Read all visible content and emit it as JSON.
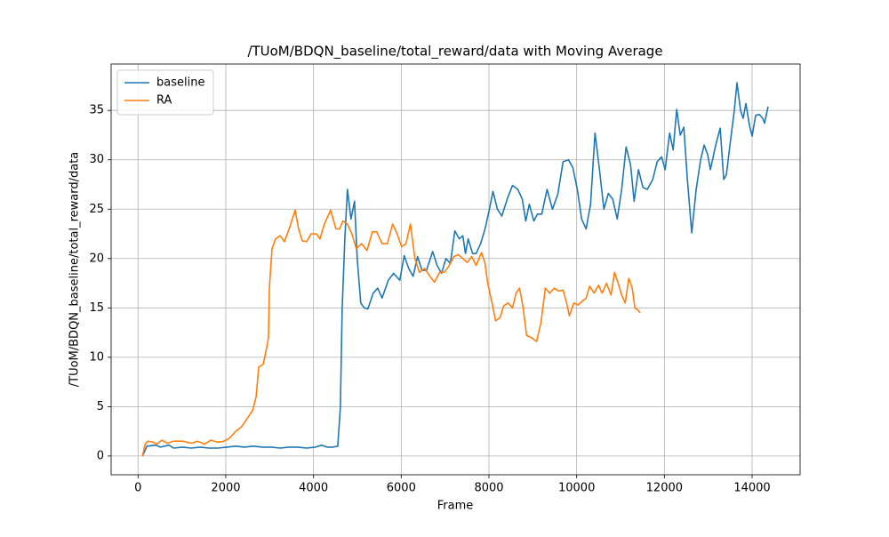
{
  "chart_data": {
    "type": "line",
    "title": "/TUoM/BDQN_baseline/total_reward/data with Moving Average",
    "xlabel": "Frame",
    "ylabel": "/TUoM/BDQN_baseline/total_reward/data",
    "xlim": [
      -614,
      15094
    ],
    "ylim": [
      -1.9,
      39.7
    ],
    "xticks": [
      0,
      2000,
      4000,
      6000,
      8000,
      10000,
      12000,
      14000
    ],
    "yticks": [
      0,
      5,
      10,
      15,
      20,
      25,
      30,
      35
    ],
    "grid": true,
    "legend": "upper-left",
    "series": [
      {
        "name": "baseline",
        "color": "#1f77b4",
        "x": [
          101,
          202,
          405,
          506,
          708,
          809,
          1012,
          1214,
          1416,
          1618,
          1821,
          2023,
          2225,
          2428,
          2630,
          2832,
          3035,
          3237,
          3439,
          3641,
          3844,
          4046,
          4188,
          4309,
          4451,
          4552,
          4613,
          4653,
          4714,
          4774,
          4855,
          4936,
          4997,
          5078,
          5159,
          5240,
          5361,
          5462,
          5563,
          5705,
          5826,
          5968,
          6069,
          6170,
          6271,
          6372,
          6474,
          6575,
          6717,
          6818,
          6919,
          7020,
          7121,
          7222,
          7323,
          7404,
          7465,
          7526,
          7627,
          7708,
          7809,
          7910,
          8011,
          8092,
          8193,
          8294,
          8416,
          8537,
          8659,
          8760,
          8840,
          8921,
          9023,
          9104,
          9205,
          9326,
          9448,
          9569,
          9690,
          9812,
          9913,
          10014,
          10115,
          10216,
          10317,
          10419,
          10520,
          10621,
          10722,
          10823,
          10924,
          11026,
          11127,
          11228,
          11309,
          11410,
          11511,
          11612,
          11733,
          11834,
          11936,
          12017,
          12118,
          12199,
          12280,
          12361,
          12442,
          12523,
          12624,
          12725,
          12826,
          12907,
          12988,
          13049,
          13170,
          13271,
          13352,
          13413,
          13494,
          13595,
          13655,
          13736,
          13797,
          13858,
          13939,
          13999,
          14080,
          14161,
          14242,
          14283,
          14364
        ],
        "values": [
          0,
          1.0,
          1.1,
          0.9,
          1.1,
          0.8,
          0.9,
          0.8,
          0.9,
          0.8,
          0.8,
          0.9,
          1.0,
          0.9,
          1.0,
          0.9,
          0.9,
          0.8,
          0.9,
          0.9,
          0.8,
          0.9,
          1.1,
          0.9,
          0.9,
          1.0,
          5,
          15,
          22,
          27,
          24,
          25.8,
          20,
          15.5,
          15,
          14.9,
          16.5,
          17,
          16,
          17.8,
          18.5,
          17.8,
          20.3,
          19,
          18.2,
          20.2,
          18.8,
          18.8,
          20.7,
          19.3,
          18.5,
          20,
          19.5,
          22.8,
          22,
          22.3,
          20.5,
          22,
          20.5,
          20.5,
          21.5,
          23,
          25,
          26.8,
          25,
          24.3,
          26,
          27.4,
          27,
          26,
          23.8,
          25.5,
          23.8,
          24.5,
          24.5,
          27,
          25,
          26.5,
          29.8,
          30,
          29.2,
          27,
          24,
          23,
          25.5,
          32.7,
          29,
          25,
          26.6,
          26,
          24,
          27,
          31.3,
          29.5,
          25.8,
          29,
          27.2,
          27,
          28,
          29.8,
          30.3,
          29,
          32.7,
          31,
          35.1,
          32.5,
          33.3,
          28,
          22.6,
          27,
          30,
          31.5,
          30.5,
          29,
          31.5,
          33.2,
          28,
          28.5,
          31.5,
          35,
          37.8,
          35,
          34.2,
          35.7,
          33.5,
          32.4,
          34.5,
          34.6,
          34.2,
          33.7,
          35.4
        ]
      },
      {
        "name": "RA",
        "color": "#ff7f0e",
        "x": [
          101,
          162,
          223,
          344,
          425,
          546,
          668,
          809,
          1012,
          1214,
          1355,
          1517,
          1659,
          1821,
          1962,
          2084,
          2225,
          2367,
          2488,
          2610,
          2691,
          2751,
          2853,
          2933,
          2974,
          2994,
          3055,
          3136,
          3237,
          3338,
          3459,
          3581,
          3661,
          3743,
          3844,
          3945,
          4066,
          4147,
          4248,
          4390,
          4511,
          4592,
          4673,
          4774,
          4875,
          4977,
          5098,
          5219,
          5341,
          5442,
          5563,
          5684,
          5806,
          5907,
          6008,
          6110,
          6211,
          6312,
          6413,
          6535,
          6656,
          6757,
          6878,
          6980,
          7081,
          7202,
          7303,
          7404,
          7505,
          7606,
          7708,
          7829,
          7910,
          7971,
          8072,
          8153,
          8254,
          8335,
          8436,
          8537,
          8618,
          8699,
          8780,
          8860,
          8962,
          9084,
          9185,
          9286,
          9387,
          9488,
          9589,
          9690,
          9771,
          9832,
          9933,
          10034,
          10135,
          10216,
          10297,
          10398,
          10500,
          10581,
          10682,
          10783,
          10864,
          10945,
          11026,
          11107,
          11188,
          11268,
          11329,
          11390,
          11450
        ],
        "values": [
          0,
          1.2,
          1.5,
          1.4,
          1.2,
          1.6,
          1.3,
          1.5,
          1.5,
          1.3,
          1.5,
          1.2,
          1.6,
          1.4,
          1.5,
          1.8,
          2.5,
          3,
          3.8,
          4.6,
          6,
          9,
          9.3,
          11,
          12,
          17,
          21,
          22,
          22.3,
          21.7,
          23.2,
          24.9,
          23,
          21.8,
          21.7,
          22.5,
          22.5,
          22,
          23.5,
          24.9,
          23,
          23,
          23.8,
          23.5,
          22.5,
          21,
          21.5,
          20.8,
          22.7,
          22.7,
          21.5,
          21.5,
          23.5,
          22.5,
          21.2,
          21.5,
          23.5,
          20,
          18.6,
          19,
          18.2,
          17.6,
          18.6,
          18.6,
          19.2,
          20.2,
          20.4,
          20,
          19.6,
          20.2,
          19.3,
          20.6,
          19.5,
          17.5,
          15.5,
          13.7,
          14,
          15.2,
          15.5,
          15,
          16.5,
          17,
          15,
          12.2,
          12,
          11.6,
          13.5,
          17,
          16.5,
          17,
          16.7,
          16.8,
          15.5,
          14.2,
          15.5,
          15.3,
          15.7,
          16,
          17.2,
          16.5,
          17.3,
          16.5,
          17.5,
          16.3,
          18.6,
          17.5,
          16.3,
          15.5,
          18,
          17,
          15,
          14.8,
          14.5
        ]
      }
    ]
  }
}
